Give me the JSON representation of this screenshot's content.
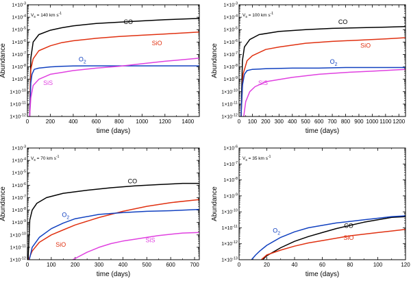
{
  "chart_data": [
    {
      "type": "line",
      "annotation": {
        "base": "V",
        "sub": "s",
        "text": " = 140 km s",
        "sup": "-1"
      },
      "xlabel": "time (days)",
      "ylabel": "Abundance",
      "xlim": [
        0,
        1500
      ],
      "ylim_log10": [
        -12,
        -3
      ],
      "xticks": [
        0,
        200,
        400,
        600,
        800,
        1000,
        1200,
        1400
      ],
      "yticks_log10": [
        -12,
        -11,
        -10,
        -9,
        -8,
        -7,
        -6,
        -5,
        -4,
        -3
      ],
      "series": [
        {
          "name": "CO",
          "color": "#000000",
          "x": [
            20,
            30,
            50,
            100,
            200,
            300,
            400,
            600,
            800,
            1000,
            1200,
            1500
          ],
          "y_log10": [
            -12,
            -7.3,
            -6.0,
            -5.4,
            -5.05,
            -4.85,
            -4.7,
            -4.5,
            -4.4,
            -4.3,
            -4.2,
            -4.1
          ]
        },
        {
          "name": "SiO",
          "color": "#e03010",
          "x": [
            20,
            30,
            50,
            100,
            200,
            300,
            400,
            600,
            800,
            1000,
            1200,
            1500
          ],
          "y_log10": [
            -12,
            -8.2,
            -7.35,
            -6.7,
            -6.3,
            -6.05,
            -5.9,
            -5.7,
            -5.55,
            -5.45,
            -5.35,
            -5.2
          ]
        },
        {
          "name": "O",
          "sub": "2",
          "color": "#1040c0",
          "x": [
            20,
            30,
            40,
            60,
            100,
            200,
            300,
            400,
            600,
            800,
            1000,
            1200,
            1500
          ],
          "y_log10": [
            -12,
            -9.3,
            -8.6,
            -8.2,
            -8.1,
            -8.0,
            -7.95,
            -7.93,
            -7.92,
            -7.92,
            -7.92,
            -7.92,
            -7.92
          ]
        },
        {
          "name": "SiS",
          "color": "#e040e0",
          "x": [
            20,
            30,
            50,
            100,
            200,
            300,
            400,
            600,
            800,
            1000,
            1200,
            1500
          ],
          "y_log10": [
            -12,
            -10.5,
            -9.5,
            -9.0,
            -8.6,
            -8.45,
            -8.3,
            -8.1,
            -7.95,
            -7.75,
            -7.55,
            -7.3
          ]
        }
      ],
      "labels": [
        {
          "series": 0,
          "x": 880,
          "y_log10": -4.55
        },
        {
          "series": 1,
          "x": 1130,
          "y_log10": -6.25
        },
        {
          "series": 2,
          "x": 480,
          "y_log10": -7.55
        },
        {
          "series": 3,
          "x": 180,
          "y_log10": -9.45
        }
      ]
    },
    {
      "type": "line",
      "annotation": {
        "base": "V",
        "sub": "s",
        "text": " = 100 km s",
        "sup": "-1"
      },
      "xlabel": "time (days)",
      "ylabel": "Abundance",
      "xlim": [
        0,
        1250
      ],
      "ylim_log10": [
        -12,
        -3
      ],
      "xticks": [
        0,
        100,
        200,
        300,
        400,
        500,
        600,
        700,
        800,
        900,
        1000,
        1100,
        1200
      ],
      "yticks_log10": [
        -12,
        -11,
        -10,
        -9,
        -8,
        -7,
        -6,
        -5,
        -4,
        -3
      ],
      "series": [
        {
          "name": "CO",
          "color": "#000000",
          "x": [
            15,
            25,
            40,
            80,
            150,
            300,
            500,
            700,
            900,
            1100,
            1250
          ],
          "y_log10": [
            -12,
            -7.5,
            -6.4,
            -5.8,
            -5.4,
            -5.15,
            -5.0,
            -4.9,
            -4.85,
            -4.8,
            -4.75
          ]
        },
        {
          "name": "SiO",
          "color": "#e03010",
          "x": [
            15,
            30,
            60,
            100,
            200,
            300,
            500,
            700,
            900,
            1100,
            1250
          ],
          "y_log10": [
            -12,
            -8.6,
            -7.5,
            -7.1,
            -6.6,
            -6.4,
            -6.1,
            -5.95,
            -5.85,
            -5.75,
            -5.65
          ]
        },
        {
          "name": "O",
          "sub": "2",
          "color": "#1040c0",
          "x": [
            15,
            25,
            40,
            60,
            100,
            200,
            400,
            600,
            800,
            1000,
            1250
          ],
          "y_log10": [
            -12,
            -9.5,
            -8.6,
            -8.3,
            -8.2,
            -8.15,
            -8.1,
            -8.1,
            -8.05,
            -8.05,
            -8.05
          ]
        },
        {
          "name": "SiS",
          "color": "#e040e0",
          "x": [
            35,
            50,
            80,
            120,
            200,
            400,
            600,
            800,
            1000,
            1250
          ],
          "y_log10": [
            -12,
            -10.8,
            -10.0,
            -9.6,
            -9.2,
            -8.85,
            -8.6,
            -8.45,
            -8.35,
            -8.2
          ]
        }
      ],
      "labels": [
        {
          "series": 0,
          "x": 780,
          "y_log10": -4.55
        },
        {
          "series": 1,
          "x": 950,
          "y_log10": -6.45
        },
        {
          "series": 2,
          "x": 710,
          "y_log10": -7.75
        },
        {
          "series": 3,
          "x": 180,
          "y_log10": -9.45
        }
      ]
    },
    {
      "type": "line",
      "annotation": {
        "base": "V",
        "sub": "s",
        "text": " = 70 km s",
        "sup": "-1"
      },
      "xlabel": "time (days)",
      "ylabel": "Abundance",
      "xlim": [
        0,
        720
      ],
      "ylim_log10": [
        -12,
        -3
      ],
      "xticks": [
        0,
        100,
        200,
        300,
        400,
        500,
        600,
        700
      ],
      "yticks_log10": [
        -12,
        -11,
        -10,
        -9,
        -8,
        -7,
        -6,
        -5,
        -4,
        -3
      ],
      "series": [
        {
          "name": "CO",
          "color": "#000000",
          "x": [
            3,
            10,
            20,
            40,
            80,
            150,
            250,
            350,
            450,
            550,
            650,
            720
          ],
          "y_log10": [
            -12,
            -8.8,
            -8.0,
            -7.45,
            -7.0,
            -6.65,
            -6.4,
            -6.2,
            -6.05,
            -5.95,
            -5.85,
            -5.85
          ]
        },
        {
          "name": "SiO",
          "color": "#e03010",
          "x": [
            5,
            20,
            50,
            100,
            150,
            200,
            300,
            400,
            500,
            600,
            720
          ],
          "y_log10": [
            -12,
            -11.3,
            -10.6,
            -10.0,
            -9.6,
            -9.2,
            -8.6,
            -8.1,
            -7.7,
            -7.4,
            -7.15
          ]
        },
        {
          "name": "O",
          "sub": "2",
          "color": "#1040c0",
          "x": [
            8,
            20,
            50,
            100,
            150,
            200,
            300,
            400,
            500,
            600,
            720
          ],
          "y_log10": [
            -12,
            -11.0,
            -10.2,
            -9.5,
            -9.05,
            -8.7,
            -8.35,
            -8.2,
            -8.1,
            -8.05,
            -7.95
          ]
        },
        {
          "name": "SiS",
          "color": "#e040e0",
          "x": [
            190,
            250,
            300,
            350,
            400,
            450,
            500,
            550,
            600,
            650,
            720
          ],
          "y_log10": [
            -12,
            -11.4,
            -11.0,
            -10.7,
            -10.5,
            -10.35,
            -10.2,
            -10.05,
            -9.95,
            -9.85,
            -9.8
          ]
        }
      ],
      "labels": [
        {
          "series": 0,
          "x": 440,
          "y_log10": -5.85
        },
        {
          "series": 1,
          "x": 140,
          "y_log10": -10.95
        },
        {
          "series": 2,
          "x": 160,
          "y_log10": -8.55
        },
        {
          "series": 3,
          "x": 515,
          "y_log10": -10.6
        }
      ]
    },
    {
      "type": "line",
      "annotation": {
        "base": "V",
        "sub": "s",
        "text": " = 35 km s",
        "sup": "-1"
      },
      "xlabel": "time (days)",
      "ylabel": "Abundance",
      "xlim": [
        0,
        120
      ],
      "ylim_log10": [
        -13,
        -6
      ],
      "xticks": [
        0,
        20,
        40,
        60,
        80,
        100,
        120
      ],
      "yticks_log10": [
        -13,
        -12,
        -11,
        -10,
        -9,
        -8,
        -7,
        -6
      ],
      "series": [
        {
          "name": "CO",
          "color": "#000000",
          "x": [
            17,
            20,
            25,
            30,
            40,
            50,
            60,
            70,
            80,
            90,
            100,
            110,
            120
          ],
          "y_log10": [
            -13,
            -12.75,
            -12.5,
            -12.25,
            -11.85,
            -11.55,
            -11.3,
            -11.05,
            -10.85,
            -10.65,
            -10.5,
            -10.35,
            -10.3
          ]
        },
        {
          "name": "SiO",
          "color": "#e03010",
          "x": [
            16,
            20,
            25,
            30,
            40,
            50,
            60,
            70,
            80,
            90,
            100,
            110,
            120
          ],
          "y_log10": [
            -13,
            -12.7,
            -12.55,
            -12.4,
            -12.15,
            -11.95,
            -11.8,
            -11.65,
            -11.5,
            -11.4,
            -11.3,
            -11.2,
            -11.1
          ]
        },
        {
          "name": "O",
          "sub": "2",
          "color": "#1040c0",
          "x": [
            9,
            12,
            15,
            20,
            25,
            30,
            40,
            50,
            60,
            70,
            80,
            90,
            100,
            110,
            120
          ],
          "y_log10": [
            -13,
            -12.7,
            -12.45,
            -12.1,
            -11.85,
            -11.6,
            -11.25,
            -11.0,
            -10.85,
            -10.7,
            -10.6,
            -10.5,
            -10.4,
            -10.3,
            -10.25
          ]
        }
      ],
      "labels": [
        {
          "series": 0,
          "x": 79,
          "y_log10": -11.0
        },
        {
          "series": 1,
          "x": 79,
          "y_log10": -11.75
        },
        {
          "series": 2,
          "x": 27,
          "y_log10": -11.3
        }
      ]
    }
  ]
}
